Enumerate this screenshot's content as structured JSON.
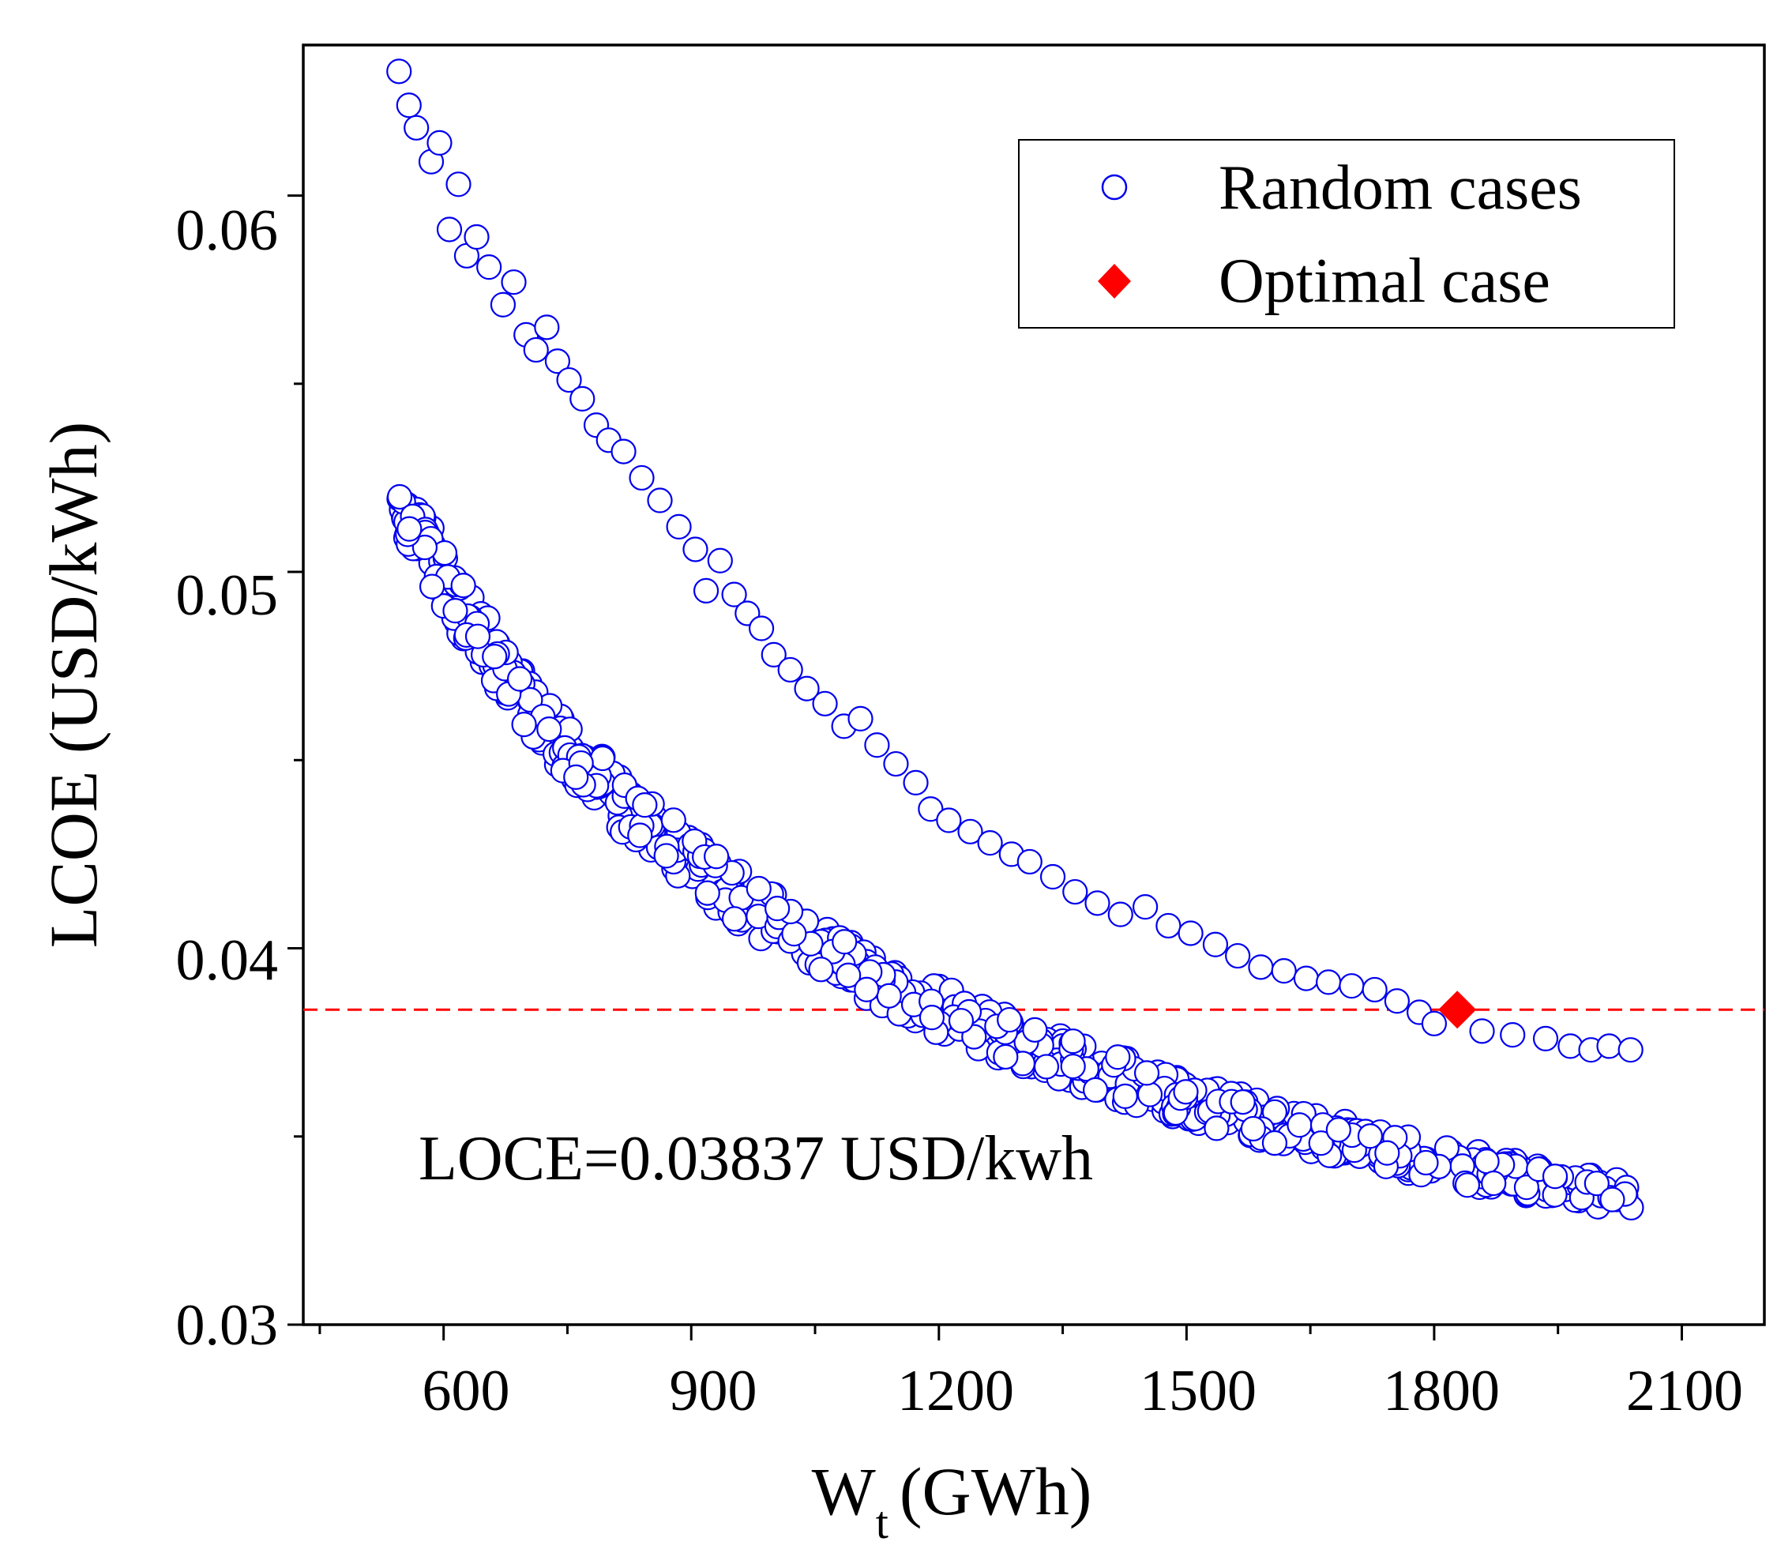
{
  "chart_data": {
    "type": "scatter",
    "title": "",
    "xlabel_main": "W",
    "xlabel_sub": "t",
    "xlabel_unit": "(GWh)",
    "ylabel": "LCOE (USD/kWh)",
    "xlim": [
      430,
      2200
    ],
    "ylim": [
      0.03,
      0.064
    ],
    "xticks": [
      600,
      900,
      1200,
      1500,
      1800,
      2100
    ],
    "xtick_labels": [
      "600",
      "900",
      "1200",
      "1500",
      "1800",
      "2100"
    ],
    "xminor_ticks": [
      450,
      750,
      1050,
      1350,
      1650,
      1950
    ],
    "yticks": [
      0.03,
      0.04,
      0.05,
      0.06
    ],
    "ytick_labels": [
      "0.03",
      "0.04",
      "0.05",
      "0.06"
    ],
    "yminor_ticks": [
      0.035,
      0.045,
      0.055
    ],
    "grid": false,
    "legend_position": "top-right",
    "series": [
      {
        "name": "Random cases",
        "marker": "open-circle",
        "color": "#0000ee",
        "curve": {
          "form": "A + B / x^p",
          "A": 0.0252,
          "B": 7.79,
          "p": 0.9
        },
        "sample_x_range": [
          545,
          2040
        ],
        "sample_count": 720,
        "highlight_points": [
          {
            "x": 546,
            "y": 0.0633
          },
          {
            "x": 558,
            "y": 0.0624
          },
          {
            "x": 567,
            "y": 0.0618
          },
          {
            "x": 585,
            "y": 0.0609
          },
          {
            "x": 595,
            "y": 0.0614
          },
          {
            "x": 607,
            "y": 0.0591
          },
          {
            "x": 618,
            "y": 0.0603
          },
          {
            "x": 628,
            "y": 0.0584
          },
          {
            "x": 640,
            "y": 0.0589
          },
          {
            "x": 655,
            "y": 0.0581
          },
          {
            "x": 672,
            "y": 0.0571
          },
          {
            "x": 685,
            "y": 0.0577
          },
          {
            "x": 700,
            "y": 0.0563
          },
          {
            "x": 712,
            "y": 0.0559
          },
          {
            "x": 725,
            "y": 0.0565
          },
          {
            "x": 738,
            "y": 0.0556
          },
          {
            "x": 752,
            "y": 0.0551
          },
          {
            "x": 768,
            "y": 0.0546
          },
          {
            "x": 785,
            "y": 0.0539
          },
          {
            "x": 800,
            "y": 0.0535
          },
          {
            "x": 818,
            "y": 0.0532
          },
          {
            "x": 840,
            "y": 0.0525
          },
          {
            "x": 862,
            "y": 0.0519
          },
          {
            "x": 885,
            "y": 0.0512
          },
          {
            "x": 905,
            "y": 0.0506
          },
          {
            "x": 918,
            "y": 0.0495
          },
          {
            "x": 935,
            "y": 0.0503
          },
          {
            "x": 952,
            "y": 0.0494
          },
          {
            "x": 968,
            "y": 0.0489
          },
          {
            "x": 985,
            "y": 0.0485
          },
          {
            "x": 1000,
            "y": 0.0478
          },
          {
            "x": 1020,
            "y": 0.0474
          },
          {
            "x": 1040,
            "y": 0.0469
          },
          {
            "x": 1062,
            "y": 0.0465
          },
          {
            "x": 1085,
            "y": 0.0459
          },
          {
            "x": 1105,
            "y": 0.0461
          },
          {
            "x": 1125,
            "y": 0.0454
          },
          {
            "x": 1148,
            "y": 0.0449
          },
          {
            "x": 1172,
            "y": 0.0444
          },
          {
            "x": 1190,
            "y": 0.0437
          },
          {
            "x": 1212,
            "y": 0.0434
          },
          {
            "x": 1238,
            "y": 0.0431
          },
          {
            "x": 1262,
            "y": 0.0428
          },
          {
            "x": 1288,
            "y": 0.0425
          },
          {
            "x": 1310,
            "y": 0.0423
          },
          {
            "x": 1338,
            "y": 0.0419
          },
          {
            "x": 1365,
            "y": 0.0415
          },
          {
            "x": 1392,
            "y": 0.0412
          },
          {
            "x": 1420,
            "y": 0.0409
          },
          {
            "x": 1450,
            "y": 0.0411
          },
          {
            "x": 1478,
            "y": 0.0406
          },
          {
            "x": 1505,
            "y": 0.0404
          },
          {
            "x": 1535,
            "y": 0.0401
          },
          {
            "x": 1562,
            "y": 0.0398
          },
          {
            "x": 1590,
            "y": 0.0395
          },
          {
            "x": 1618,
            "y": 0.0394
          },
          {
            "x": 1645,
            "y": 0.0392
          },
          {
            "x": 1672,
            "y": 0.0391
          },
          {
            "x": 1700,
            "y": 0.039
          },
          {
            "x": 1728,
            "y": 0.0389
          },
          {
            "x": 1755,
            "y": 0.0386
          },
          {
            "x": 1782,
            "y": 0.0383
          },
          {
            "x": 1800,
            "y": 0.038
          },
          {
            "x": 1858,
            "y": 0.0378
          },
          {
            "x": 1895,
            "y": 0.0377
          },
          {
            "x": 1935,
            "y": 0.0376
          },
          {
            "x": 1965,
            "y": 0.0374
          },
          {
            "x": 1990,
            "y": 0.0373
          },
          {
            "x": 2012,
            "y": 0.0374
          },
          {
            "x": 2038,
            "y": 0.0373
          }
        ]
      },
      {
        "name": "Optimal case",
        "marker": "filled-diamond",
        "color": "#ff0000",
        "points": [
          {
            "x": 1828,
            "y": 0.03837
          }
        ]
      }
    ],
    "reference_line": {
      "type": "horizontal-dashed",
      "y": 0.03837,
      "color": "#ff0000"
    },
    "annotation": "LOCE=0.03837 USD/kwh"
  },
  "legend": {
    "items": [
      "Random cases",
      "Optimal case"
    ]
  }
}
